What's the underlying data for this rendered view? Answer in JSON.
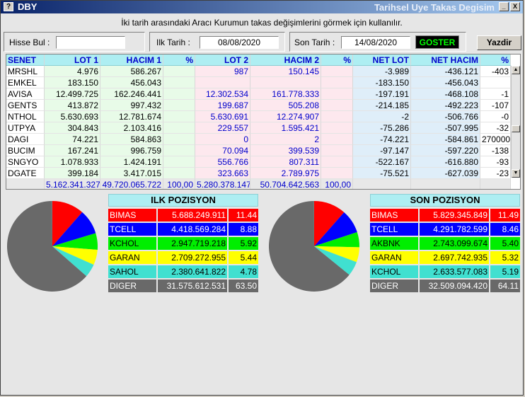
{
  "window": {
    "app_title": "DBY",
    "title": "Tarihsel Uye Takas Degisim",
    "min_label": "_",
    "close_label": "X"
  },
  "info_text": "İki tarih arasındaki  Aracı Kurumun takas değişimlerini görmek için kullanılır.",
  "controls": {
    "hisse_label": "Hisse Bul :",
    "hisse_value": "",
    "ilk_label": "Ilk Tarih :",
    "ilk_value": "08/08/2020",
    "son_label": "Son Tarih :",
    "son_value": "14/08/2020",
    "goster_label": "GOSTER",
    "yazdir_label": "Yazdir"
  },
  "table": {
    "headers": [
      "SENET",
      "LOT 1",
      "HACIM 1",
      "%",
      "LOT 2",
      "HACIM 2",
      "%",
      "NET LOT",
      "NET HACIM",
      "%"
    ],
    "rows": [
      [
        "MRSHL",
        "4.976",
        "586.267",
        "",
        "987",
        "150.145",
        "",
        "-3.989",
        "-436.121",
        "-403"
      ],
      [
        "EMKEL",
        "183.150",
        "456.043",
        "",
        "",
        "",
        "",
        "-183.150",
        "-456.043",
        ""
      ],
      [
        "AVISA",
        "12.499.725",
        "162.246.441",
        "",
        "12.302.534",
        "161.778.333",
        "",
        "-197.191",
        "-468.108",
        "-1"
      ],
      [
        "GENTS",
        "413.872",
        "997.432",
        "",
        "199.687",
        "505.208",
        "",
        "-214.185",
        "-492.223",
        "-107"
      ],
      [
        "NTHOL",
        "5.630.693",
        "12.781.674",
        "",
        "5.630.691",
        "12.274.907",
        "",
        "-2",
        "-506.766",
        "-0"
      ],
      [
        "UTPYA",
        "304.843",
        "2.103.416",
        "",
        "229.557",
        "1.595.421",
        "",
        "-75.286",
        "-507.995",
        "-32"
      ],
      [
        "DAGI",
        "74.221",
        "584.863",
        "",
        "0",
        "2",
        "",
        "-74.221",
        "-584.861",
        "270000"
      ],
      [
        "BUCIM",
        "167.241",
        "996.759",
        "",
        "70.094",
        "399.539",
        "",
        "-97.147",
        "-597.220",
        "-138"
      ],
      [
        "SNGYO",
        "1.078.933",
        "1.424.191",
        "",
        "556.766",
        "807.311",
        "",
        "-522.167",
        "-616.880",
        "-93"
      ],
      [
        "DGATE",
        "399.184",
        "3.417.015",
        "",
        "323.663",
        "2.789.975",
        "",
        "-75.521",
        "-627.039",
        "-23"
      ]
    ],
    "totals": [
      "",
      "5.162.341.327",
      "49.720.065.722",
      "100,00",
      "5.280.378.147",
      "50.704.642.563",
      "100,00",
      "",
      "",
      ""
    ]
  },
  "ilk": {
    "title": "ILK POZISYON",
    "items": [
      {
        "name": "BIMAS",
        "value": "5.688.249.911",
        "pct": "11.44",
        "color": "#ff0000"
      },
      {
        "name": "TCELL",
        "value": "4.418.569.284",
        "pct": "8.88",
        "color": "#0000ff"
      },
      {
        "name": "KCHOL",
        "value": "2.947.719.218",
        "pct": "5.92",
        "color": "#00ee00"
      },
      {
        "name": "GARAN",
        "value": "2.709.272.955",
        "pct": "5.44",
        "color": "#ffff00"
      },
      {
        "name": "SAHOL",
        "value": "2.380.641.822",
        "pct": "4.78",
        "color": "#40e0d0"
      },
      {
        "name": "DIGER",
        "value": "31.575.612.531",
        "pct": "63.50",
        "color": "#696969"
      }
    ]
  },
  "son": {
    "title": "SON POZISYON",
    "items": [
      {
        "name": "BIMAS",
        "value": "5.829.345.849",
        "pct": "11.49",
        "color": "#ff0000"
      },
      {
        "name": "TCELL",
        "value": "4.291.782.599",
        "pct": "8.46",
        "color": "#0000ff"
      },
      {
        "name": "AKBNK",
        "value": "2.743.099.674",
        "pct": "5.40",
        "color": "#00ee00"
      },
      {
        "name": "GARAN",
        "value": "2.697.742.935",
        "pct": "5.32",
        "color": "#ffff00"
      },
      {
        "name": "KCHOL",
        "value": "2.633.577.083",
        "pct": "5.19",
        "color": "#40e0d0"
      },
      {
        "name": "DIGER",
        "value": "32.509.094.420",
        "pct": "64.11",
        "color": "#696969"
      }
    ]
  }
}
